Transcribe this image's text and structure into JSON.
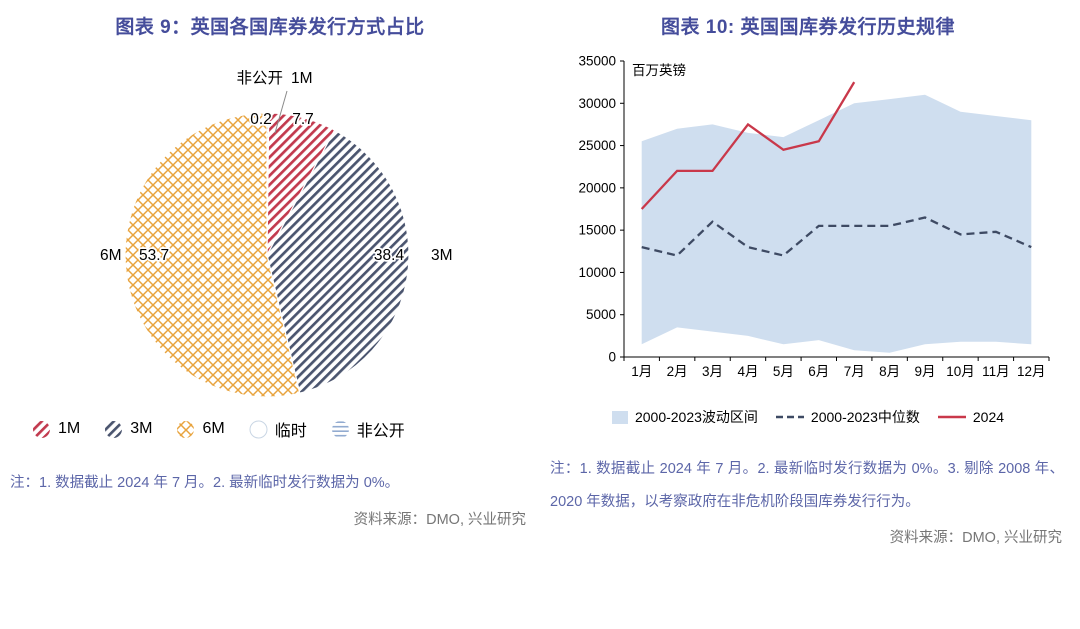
{
  "theme": {
    "title_color": "#454d9b",
    "note_color": "#5c66a8",
    "source_color": "#767676"
  },
  "chart_data": [
    {
      "type": "pie",
      "title": "图表 9：英国各国库券发行方式占比",
      "slices": [
        {
          "name": "非公开",
          "value": 0.2,
          "pattern": "horizontal",
          "color": "#92abd0"
        },
        {
          "name": "1M",
          "value": 7.7,
          "pattern": "diagonal",
          "color": "#c23a4e"
        },
        {
          "name": "3M",
          "value": 38.4,
          "pattern": "diagonal",
          "color": "#4b556f"
        },
        {
          "name": "6M",
          "value": 53.7,
          "pattern": "crosshatch",
          "color": "#e8a33d"
        },
        {
          "name": "临时",
          "value": 0,
          "pattern": "plain",
          "color": "#ffffff"
        }
      ],
      "legend_order": [
        "1M",
        "3M",
        "6M",
        "临时",
        "非公开"
      ],
      "annotations": [
        {
          "slice": "非公开",
          "field": "name",
          "x": 280,
          "y": 38,
          "anchor": "end"
        },
        {
          "slice": "1M",
          "field": "name",
          "x": 288,
          "y": 38,
          "anchor": "start"
        },
        {
          "slice": "非公开",
          "field": "value",
          "x": 258,
          "y": 79,
          "anchor": "middle"
        },
        {
          "slice": "1M",
          "field": "value",
          "x": 300,
          "y": 79,
          "anchor": "middle"
        },
        {
          "slice": "3M",
          "field": "value",
          "x": 386,
          "y": 215,
          "anchor": "middle"
        },
        {
          "slice": "3M",
          "field": "name",
          "x": 428,
          "y": 215,
          "anchor": "start"
        },
        {
          "slice": "6M",
          "field": "name",
          "x": 97,
          "y": 215,
          "anchor": "start"
        },
        {
          "slice": "6M",
          "field": "value",
          "x": 136,
          "y": 215,
          "anchor": "start"
        }
      ],
      "note": "注：1. 数据截止 2024 年 7 月。2. 最新临时发行数据为 0%。",
      "source": "资料来源：DMO, 兴业研究"
    },
    {
      "type": "line",
      "title": "图表 10: 英国国库券发行历史规律",
      "unit_label": "百万英镑",
      "x_labels": [
        "1月",
        "2月",
        "3月",
        "4月",
        "5月",
        "6月",
        "7月",
        "8月",
        "9月",
        "10月",
        "11月",
        "12月"
      ],
      "ylim": [
        0,
        35000
      ],
      "yticks": [
        0,
        5000,
        10000,
        15000,
        20000,
        25000,
        30000,
        35000
      ],
      "series": [
        {
          "name": "2000-2023波动区间",
          "type": "band",
          "color": "#cfdeef",
          "upper": [
            25500,
            27000,
            27500,
            26500,
            26000,
            28000,
            30000,
            30500,
            31000,
            29000,
            28500,
            28000
          ],
          "lower": [
            1500,
            3500,
            3000,
            2500,
            1500,
            2000,
            800,
            500,
            1500,
            1800,
            1800,
            1500
          ]
        },
        {
          "name": "2000-2023中位数",
          "type": "dashed",
          "color": "#3e4a63",
          "values": [
            13000,
            12000,
            16000,
            13000,
            12000,
            15500,
            15500,
            15500,
            16500,
            14500,
            14800,
            13000
          ]
        },
        {
          "name": "2024",
          "type": "line",
          "color": "#c9384a",
          "values": [
            17500,
            22000,
            22000,
            27500,
            24500,
            25500,
            32500
          ]
        }
      ],
      "note": "注：1. 数据截止 2024 年 7 月。2. 最新临时发行数据为 0%。3. 剔除 2008 年、2020 年数据，以考察政府在非危机阶段国库券发行行为。",
      "source": "资料来源：DMO, 兴业研究"
    }
  ]
}
